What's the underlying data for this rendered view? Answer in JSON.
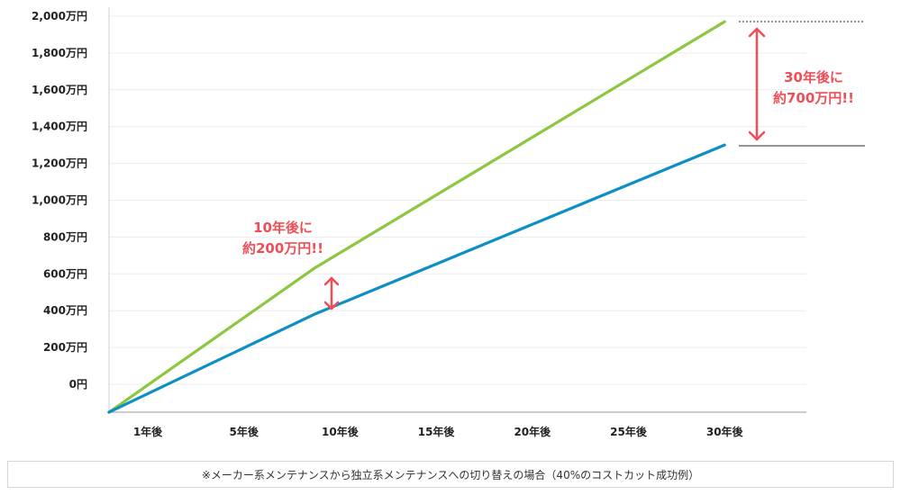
{
  "chart_data": {
    "type": "line",
    "x_categories": [
      "1年後",
      "5年後",
      "10年後",
      "15年後",
      "20年後",
      "25年後",
      "30年後"
    ],
    "y_ticks": [
      "0円",
      "200万円",
      "400万円",
      "600万円",
      "800万円",
      "1,000万円",
      "1,200万円",
      "1,400万円",
      "1,600万円",
      "1,800万円",
      "2,000万円"
    ],
    "ylim": [
      0,
      2000
    ],
    "grid": true,
    "series": [
      {
        "color": "#8dc63f",
        "start": 0,
        "x": [
          10,
          30
        ],
        "values": [
          630,
          1970
        ]
      },
      {
        "color": "#0e8fc4",
        "start": 0,
        "x": [
          10,
          30
        ],
        "values": [
          380,
          1300
        ]
      }
    ],
    "annotations": [
      {
        "line1": "10年後に",
        "line2": "約200万円!!"
      },
      {
        "line1": "30年後に",
        "line2": "約700万円!!"
      }
    ],
    "accent_color": "#ee4f57"
  },
  "caption": "※メーカー系メンテナンスから独立系メンテナンスへの切り替えの場合（40%のコストカット成功例）"
}
